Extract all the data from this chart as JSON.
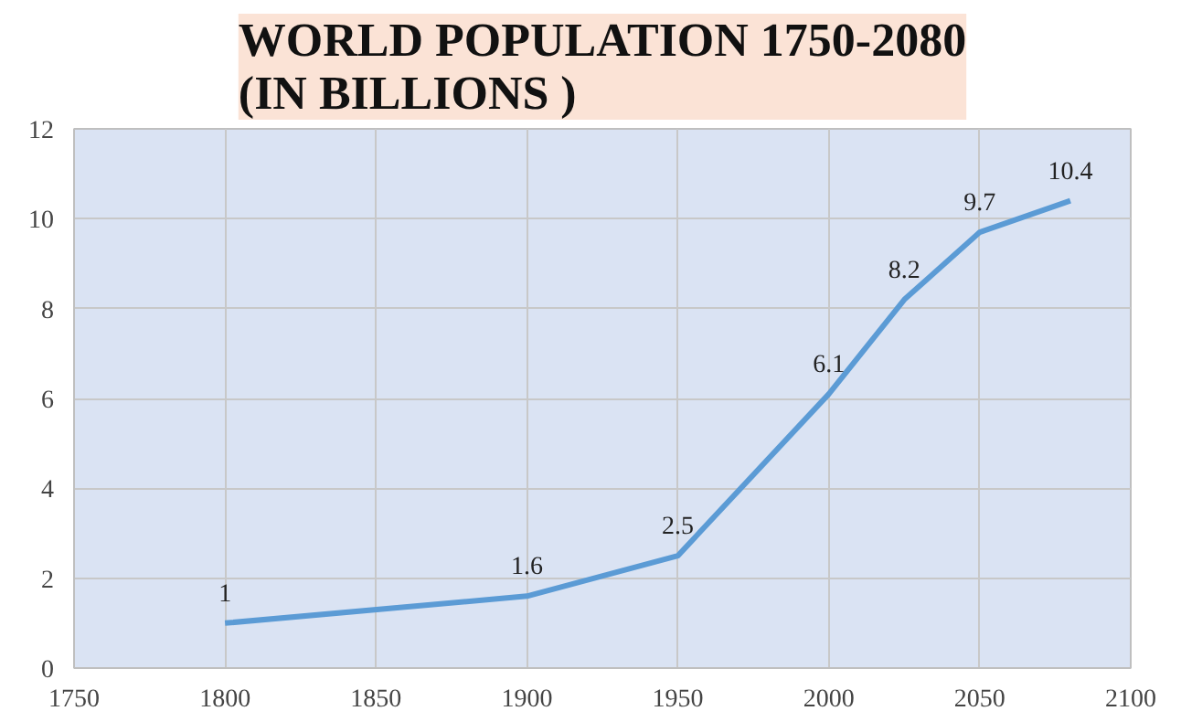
{
  "chart_data": {
    "type": "line",
    "title": "WORLD POPULATION 1750-2080\n(IN BILLIONS )",
    "x": [
      1800,
      1900,
      1950,
      2000,
      2025,
      2050,
      2080
    ],
    "series": [
      {
        "color": "#5b9bd5",
        "values": [
          1,
          1.6,
          2.5,
          6.1,
          8.2,
          9.7,
          10.4
        ]
      }
    ],
    "xlim": [
      1750,
      2100
    ],
    "xticks": [
      1750,
      1800,
      1850,
      1900,
      1950,
      2000,
      2050,
      2100
    ],
    "ylim": [
      0,
      12
    ],
    "yticks": [
      0,
      2,
      4,
      6,
      8,
      10,
      12
    ],
    "grid": true,
    "marker": "none",
    "line_style": "solid",
    "data_labels": true
  }
}
